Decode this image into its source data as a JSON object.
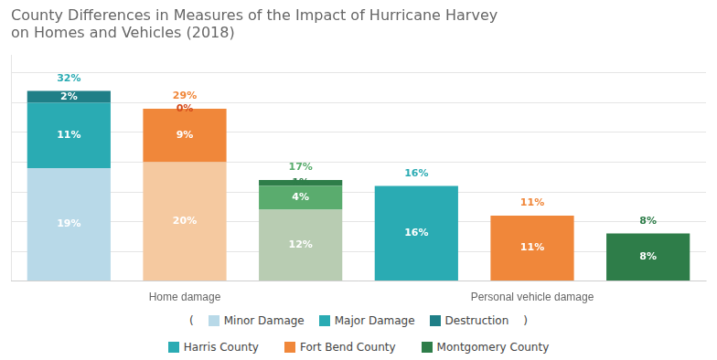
{
  "chart_data": {
    "type": "bar",
    "title": [
      "County Differences in Measures of the Impact of Hurricane Harvey",
      "on Homes and Vehicles (2018)"
    ],
    "categories": [
      null,
      "Home damage",
      null,
      null,
      "Personal vehicle damage",
      null
    ],
    "series": [
      {
        "name": "Minor Damage",
        "color": "#b8d9e8",
        "colors": [
          "#b8d9e8",
          "#f5c9a0",
          "#b8ccb2",
          null,
          null,
          null
        ],
        "values": [
          19,
          20,
          12,
          null,
          null,
          null
        ],
        "value_labels": [
          "19%",
          "20%",
          "12%",
          null,
          null,
          null
        ]
      },
      {
        "name": "Major Damage",
        "color": "#2aabb3",
        "colors": [
          "#2aabb3",
          "#f0873a",
          "#5aac6e",
          null,
          null,
          null
        ],
        "values": [
          11,
          9,
          4,
          null,
          null,
          null
        ],
        "value_labels": [
          "11%",
          "9%",
          "4%",
          null,
          null,
          null
        ]
      },
      {
        "name": "Destruction",
        "color": "#1f7f87",
        "colors": [
          "#1f7f87",
          "#d44a1a",
          "#2e7d49",
          null,
          null,
          null
        ],
        "values": [
          2,
          0,
          1,
          null,
          null,
          null
        ],
        "value_labels": [
          "2%",
          "0%",
          "1%",
          null,
          null,
          null
        ]
      },
      {
        "name": "Harris County",
        "color": "#2aabb3",
        "values": [
          null,
          null,
          null,
          16,
          null,
          null
        ],
        "value_labels": [
          null,
          null,
          null,
          "16%",
          null,
          null
        ]
      },
      {
        "name": "Fort Bend County",
        "color": "#f0873a",
        "values": [
          null,
          null,
          null,
          null,
          11,
          null
        ],
        "value_labels": [
          null,
          null,
          null,
          null,
          "11%",
          null
        ]
      },
      {
        "name": "Montgomery County",
        "color": "#2e7d49",
        "values": [
          null,
          null,
          null,
          null,
          null,
          8
        ],
        "value_labels": [
          null,
          null,
          null,
          null,
          null,
          "8%"
        ]
      }
    ],
    "totals": {
      "values": [
        32,
        29,
        17,
        16,
        11,
        8
      ],
      "value_labels": [
        "32%",
        "29%",
        "17%",
        "16%",
        "11%",
        "8%"
      ],
      "colors": [
        "#2aabb3",
        "#f0873a",
        "#5aac6e",
        "#2aabb3",
        "#f0873a",
        "#2e7d49"
      ]
    },
    "annotations": [
      "(",
      ")"
    ],
    "ylim": [
      0,
      38
    ],
    "yticks": [
      0,
      5,
      10,
      15,
      20,
      25,
      30,
      35
    ],
    "grid": "y",
    "stacked": true,
    "data_labels": true,
    "tick_labels": "x",
    "legend": "bottom"
  }
}
